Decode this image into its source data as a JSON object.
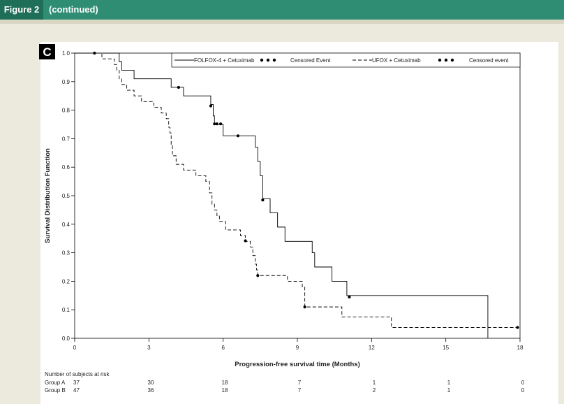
{
  "header": {
    "figure_label": "Figure 2",
    "continued": "(continued)"
  },
  "chart_data": {
    "type": "line",
    "panel_label": "C",
    "xlabel": "Progression-free survival time (Months)",
    "ylabel": "Survival Distribution Function",
    "xlim": [
      0,
      18
    ],
    "ylim": [
      0,
      1.0
    ],
    "xticks": [
      "0",
      "3",
      "6",
      "9",
      "12",
      "15",
      "18"
    ],
    "yticks": [
      "0.0",
      "0.1",
      "0.2",
      "0.3",
      "0.4",
      "0.5",
      "0.6",
      "0.7",
      "0.8",
      "0.9",
      "1.0"
    ],
    "legend_position": "top-right",
    "series": [
      {
        "name": "FOLFOX-4 + Cetuximab",
        "censor_label": "Censored Event",
        "line_style": "solid",
        "color": "#000000",
        "steps": [
          [
            0,
            1.0
          ],
          [
            1.7,
            1.0
          ],
          [
            1.8,
            0.97
          ],
          [
            1.9,
            0.94
          ],
          [
            2.4,
            0.91
          ],
          [
            3.9,
            0.88
          ],
          [
            4.4,
            0.85
          ],
          [
            5.5,
            0.82
          ],
          [
            5.6,
            0.78
          ],
          [
            5.65,
            0.75
          ],
          [
            6.0,
            0.71
          ],
          [
            7.3,
            0.67
          ],
          [
            7.4,
            0.62
          ],
          [
            7.5,
            0.57
          ],
          [
            7.6,
            0.49
          ],
          [
            7.9,
            0.44
          ],
          [
            8.2,
            0.39
          ],
          [
            8.5,
            0.34
          ],
          [
            9.6,
            0.3
          ],
          [
            9.7,
            0.25
          ],
          [
            10.4,
            0.2
          ],
          [
            11.0,
            0.15
          ],
          [
            16.7,
            0.0
          ]
        ],
        "censored": [
          [
            0.8,
            1.0
          ],
          [
            4.2,
            0.88
          ],
          [
            5.5,
            0.815
          ],
          [
            5.65,
            0.752
          ],
          [
            5.75,
            0.752
          ],
          [
            5.9,
            0.752
          ],
          [
            6.6,
            0.71
          ],
          [
            7.6,
            0.485
          ],
          [
            11.1,
            0.145
          ]
        ]
      },
      {
        "name": "UFOX + Cetuximab",
        "censor_label": "Censored event",
        "line_style": "dashed",
        "color": "#000000",
        "steps": [
          [
            0,
            1.0
          ],
          [
            1.1,
            0.98
          ],
          [
            1.6,
            0.96
          ],
          [
            1.7,
            0.94
          ],
          [
            1.8,
            0.91
          ],
          [
            1.9,
            0.89
          ],
          [
            2.1,
            0.87
          ],
          [
            2.4,
            0.85
          ],
          [
            2.7,
            0.83
          ],
          [
            3.2,
            0.81
          ],
          [
            3.5,
            0.79
          ],
          [
            3.7,
            0.77
          ],
          [
            3.8,
            0.74
          ],
          [
            3.85,
            0.72
          ],
          [
            3.9,
            0.68
          ],
          [
            3.95,
            0.64
          ],
          [
            4.1,
            0.61
          ],
          [
            4.4,
            0.59
          ],
          [
            4.9,
            0.57
          ],
          [
            5.3,
            0.55
          ],
          [
            5.45,
            0.51
          ],
          [
            5.55,
            0.47
          ],
          [
            5.65,
            0.45
          ],
          [
            5.75,
            0.43
          ],
          [
            5.85,
            0.41
          ],
          [
            6.1,
            0.38
          ],
          [
            6.7,
            0.36
          ],
          [
            6.9,
            0.34
          ],
          [
            7.1,
            0.32
          ],
          [
            7.2,
            0.29
          ],
          [
            7.3,
            0.26
          ],
          [
            7.35,
            0.24
          ],
          [
            7.4,
            0.22
          ],
          [
            8.6,
            0.2
          ],
          [
            9.2,
            0.18
          ],
          [
            9.3,
            0.11
          ],
          [
            10.8,
            0.075
          ],
          [
            12.8,
            0.038
          ],
          [
            18,
            0.038
          ]
        ],
        "censored": [
          [
            6.9,
            0.342
          ],
          [
            7.4,
            0.22
          ],
          [
            9.3,
            0.11
          ],
          [
            17.9,
            0.038
          ]
        ]
      }
    ],
    "risk_table": {
      "title": "Number of subjects at risk",
      "times": [
        0,
        3,
        6,
        9,
        12,
        15,
        18
      ],
      "groups": [
        {
          "label": "Group A",
          "values": [
            "37",
            "30",
            "18",
            "7",
            "1",
            "1",
            "0"
          ]
        },
        {
          "label": "Group B",
          "values": [
            "47",
            "36",
            "18",
            "7",
            "2",
            "1",
            "0"
          ]
        }
      ]
    }
  }
}
